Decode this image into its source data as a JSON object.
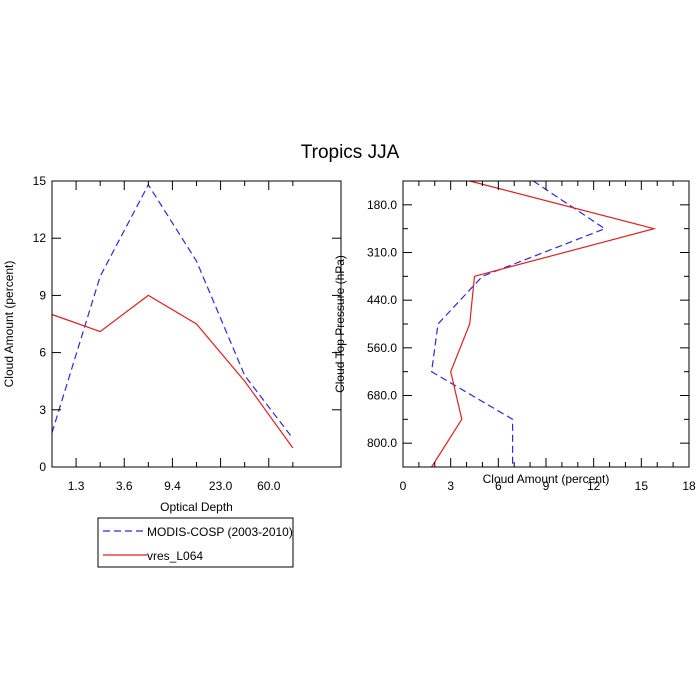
{
  "title": "Tropics JJA",
  "series_names": [
    "MODIS-COSP (2003-2010)",
    "vres_L064"
  ],
  "colors": {
    "obs": "#2a2ae0",
    "model": "#e02020",
    "axis": "#000000"
  },
  "chart_data": [
    {
      "id": "left",
      "type": "line",
      "xlabel": "Optical Depth",
      "ylabel": "Cloud Amount (percent)",
      "xlim": [
        0,
        6
      ],
      "ylim": [
        0,
        15
      ],
      "xticks": [
        {
          "v": 0.5,
          "label": "1.3"
        },
        {
          "v": 1.5,
          "label": "3.6"
        },
        {
          "v": 2.5,
          "label": "9.4"
        },
        {
          "v": 3.5,
          "label": "23.0"
        },
        {
          "v": 4.5,
          "label": "60.0"
        }
      ],
      "xminor": [
        0,
        1,
        2,
        3,
        4,
        5
      ],
      "yticks": [
        0,
        3,
        6,
        9,
        12,
        15
      ],
      "series": [
        {
          "name": "MODIS-COSP (2003-2010)",
          "style": "dashed",
          "x": [
            0,
            1,
            2,
            3,
            4,
            5
          ],
          "y": [
            1.8,
            10.0,
            14.8,
            10.8,
            4.8,
            1.5
          ]
        },
        {
          "name": "vres_L064",
          "style": "solid",
          "x": [
            0,
            1,
            2,
            3,
            4,
            5
          ],
          "y": [
            8.0,
            7.1,
            9.0,
            7.5,
            4.5,
            1.0
          ]
        }
      ]
    },
    {
      "id": "right",
      "type": "line",
      "xlabel": "Cloud Amount (percent)",
      "ylabel": "Cloud Top Pressure (hPa)",
      "xlim": [
        0,
        18
      ],
      "ylim": [
        0,
        6
      ],
      "xticks": [
        0,
        3,
        6,
        9,
        12,
        15,
        18
      ],
      "yticks": [
        {
          "v": 0.5,
          "label": "180.0"
        },
        {
          "v": 1.5,
          "label": "310.0"
        },
        {
          "v": 2.5,
          "label": "440.0"
        },
        {
          "v": 3.5,
          "label": "560.0"
        },
        {
          "v": 4.5,
          "label": "680.0"
        },
        {
          "v": 5.5,
          "label": "800.0"
        }
      ],
      "series": [
        {
          "name": "MODIS-COSP (2003-2010)",
          "style": "dashed",
          "x": [
            8.2,
            12.7,
            5.0,
            2.2,
            1.8,
            6.9,
            6.9
          ],
          "y": [
            0,
            1,
            2,
            3,
            4,
            5,
            6
          ]
        },
        {
          "name": "vres_L064",
          "style": "solid",
          "x": [
            4.2,
            15.8,
            4.5,
            4.2,
            3.0,
            3.7,
            1.8
          ],
          "y": [
            0,
            1,
            2,
            3,
            4,
            5,
            6
          ]
        }
      ]
    }
  ]
}
